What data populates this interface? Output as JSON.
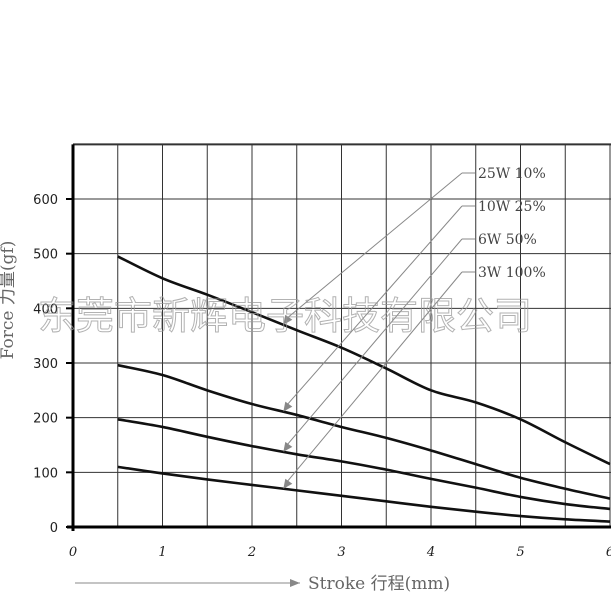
{
  "chart_data": {
    "type": "line",
    "title": "",
    "xlabel": "Stroke 行程(mm)",
    "ylabel": "Force 力量(gf)",
    "xlim": [
      0,
      6
    ],
    "ylim": [
      0,
      700
    ],
    "x_ticks": [
      "0",
      "1",
      "2",
      "3",
      "4",
      "5",
      "6"
    ],
    "y_ticks": [
      "0",
      "100",
      "200",
      "300",
      "400",
      "500",
      "600"
    ],
    "grid": true,
    "legend_position": "top-right",
    "series": [
      {
        "name": "25W 10%",
        "x": [
          0.5,
          1,
          1.5,
          2,
          2.5,
          3,
          3.5,
          4,
          4.5,
          5,
          5.5,
          6
        ],
        "y": [
          495,
          455,
          425,
          393,
          360,
          328,
          290,
          250,
          228,
          197,
          155,
          115
        ]
      },
      {
        "name": "10W 25%",
        "x": [
          0.5,
          1,
          1.5,
          2,
          2.5,
          3,
          3.5,
          4,
          4.5,
          5,
          5.5,
          6
        ],
        "y": [
          296,
          278,
          250,
          225,
          205,
          183,
          163,
          140,
          115,
          90,
          70,
          52
        ]
      },
      {
        "name": "6W 50%",
        "x": [
          0.5,
          1,
          1.5,
          2,
          2.5,
          3,
          3.5,
          4,
          4.5,
          5,
          5.5,
          6
        ],
        "y": [
          197,
          183,
          165,
          148,
          133,
          120,
          105,
          88,
          72,
          55,
          42,
          33
        ]
      },
      {
        "name": "3W 100%",
        "x": [
          0.5,
          1,
          1.5,
          2,
          2.5,
          3,
          3.5,
          4,
          4.5,
          5,
          5.5,
          6
        ],
        "y": [
          110,
          98,
          87,
          77,
          67,
          57,
          47,
          37,
          28,
          20,
          14,
          10
        ]
      }
    ]
  },
  "watermark": "东莞市新辉电子科技有限公司",
  "colors": {
    "line": "#111111",
    "grid": "#333333",
    "leader": "#888888"
  }
}
